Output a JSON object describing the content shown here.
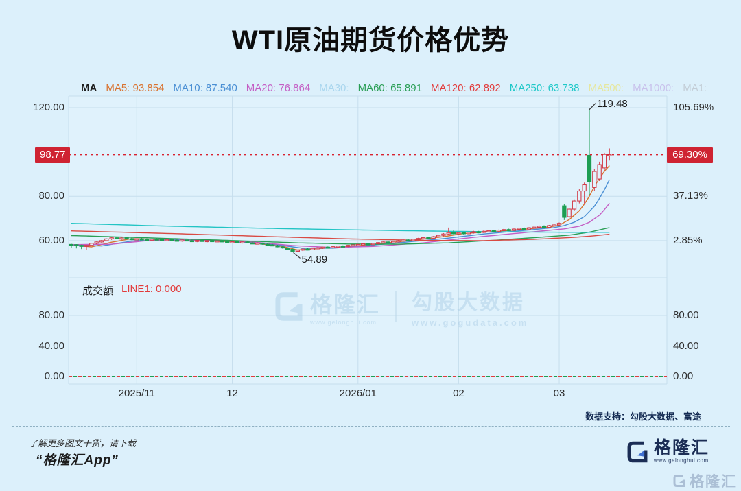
{
  "title": "WTI原油期货价格优势",
  "legend": {
    "prefix": "MA",
    "items": [
      {
        "label": "MA5: 93.854",
        "color": "#d9722f"
      },
      {
        "label": "MA10: 87.540",
        "color": "#4a8fd4"
      },
      {
        "label": "MA20: 76.864",
        "color": "#c45ec4"
      },
      {
        "label": "MA30:",
        "color": "#a9d6ee"
      },
      {
        "label": "MA60: 65.891",
        "color": "#2a9e55"
      },
      {
        "label": "MA120: 62.892",
        "color": "#e23b3b"
      },
      {
        "label": "MA250: 63.738",
        "color": "#1ec8c8"
      },
      {
        "label": "MA500:",
        "color": "#e6e79e"
      },
      {
        "label": "MA1000:",
        "color": "#c9c2ec"
      },
      {
        "label": "MA1:",
        "color": "#c3cdd6"
      }
    ]
  },
  "chart_data": {
    "type": "candlestick",
    "up_color": "#d23b49",
    "down_color": "#1d9e53",
    "main_axis_left": [
      {
        "v": 120,
        "label": "120.00"
      },
      {
        "v": 80,
        "label": "80.00"
      },
      {
        "v": 60,
        "label": "60.00"
      }
    ],
    "main_axis_right": [
      {
        "v": 120,
        "label": "105.69%"
      },
      {
        "v": 80,
        "label": "37.13%"
      },
      {
        "v": 60,
        "label": "2.85%"
      }
    ],
    "price_line": {
      "value": 98.77,
      "label": "98.77",
      "pct_label": "69.30%",
      "color": "#d8222f"
    },
    "x_ticks": [
      {
        "i": 13,
        "label": "2025/11"
      },
      {
        "i": 32,
        "label": "12"
      },
      {
        "i": 57,
        "label": "2026/01"
      },
      {
        "i": 77,
        "label": "02"
      },
      {
        "i": 97,
        "label": "03"
      }
    ],
    "annotations": [
      {
        "i": 103,
        "price": 119.48,
        "label": "119.48",
        "pos": "high"
      },
      {
        "i": 44,
        "price": 54.89,
        "label": "54.89",
        "pos": "low"
      }
    ],
    "candles": [
      [
        58.3,
        58.6,
        56.8,
        58.2
      ],
      [
        58.2,
        58.4,
        56.5,
        57.9
      ],
      [
        57.9,
        58.2,
        56.2,
        57.7
      ],
      [
        57.7,
        58.0,
        55.9,
        57.9
      ],
      [
        57.9,
        59.0,
        57.5,
        58.8
      ],
      [
        58.8,
        59.6,
        58.4,
        59.4
      ],
      [
        59.4,
        60.3,
        59.0,
        60.0
      ],
      [
        60.0,
        61.0,
        59.7,
        60.8
      ],
      [
        60.8,
        61.6,
        60.3,
        61.3
      ],
      [
        61.3,
        61.8,
        60.7,
        61.0
      ],
      [
        61.0,
        61.5,
        60.4,
        61.2
      ],
      [
        61.2,
        61.7,
        60.6,
        60.9
      ],
      [
        60.9,
        61.3,
        60.2,
        60.6
      ],
      [
        60.6,
        61.1,
        60.1,
        60.8
      ],
      [
        60.8,
        61.2,
        60.3,
        60.6
      ],
      [
        60.6,
        61.0,
        60.0,
        60.4
      ],
      [
        60.4,
        60.9,
        59.9,
        60.7
      ],
      [
        60.7,
        61.1,
        60.2,
        60.5
      ],
      [
        60.5,
        60.9,
        59.8,
        60.2
      ],
      [
        60.2,
        60.7,
        59.7,
        60.5
      ],
      [
        60.5,
        60.8,
        59.9,
        60.2
      ],
      [
        60.2,
        60.6,
        59.6,
        60.0
      ],
      [
        60.0,
        60.5,
        59.5,
        60.3
      ],
      [
        60.3,
        60.6,
        59.7,
        60.0
      ],
      [
        60.0,
        60.4,
        59.4,
        59.8
      ],
      [
        59.8,
        60.3,
        59.3,
        60.1
      ],
      [
        60.1,
        60.4,
        59.5,
        59.8
      ],
      [
        59.8,
        60.2,
        59.2,
        60.0
      ],
      [
        60.0,
        60.3,
        59.4,
        59.7
      ],
      [
        59.7,
        60.1,
        59.2,
        59.9
      ],
      [
        59.9,
        60.2,
        59.3,
        59.6
      ],
      [
        59.6,
        60.0,
        59.0,
        59.3
      ],
      [
        59.3,
        59.8,
        58.9,
        59.5
      ],
      [
        59.5,
        59.9,
        59.0,
        59.2
      ],
      [
        59.2,
        59.6,
        58.7,
        59.4
      ],
      [
        59.4,
        59.7,
        58.8,
        59.0
      ],
      [
        59.0,
        59.4,
        58.5,
        58.7
      ],
      [
        58.7,
        59.2,
        58.3,
        58.9
      ],
      [
        58.9,
        59.1,
        58.2,
        58.4
      ],
      [
        58.4,
        58.8,
        57.9,
        58.1
      ],
      [
        58.1,
        58.5,
        57.5,
        57.7
      ],
      [
        57.7,
        58.1,
        57.0,
        57.2
      ],
      [
        57.2,
        57.6,
        56.4,
        56.7
      ],
      [
        56.7,
        57.0,
        55.8,
        56.1
      ],
      [
        56.1,
        56.4,
        54.89,
        55.2
      ],
      [
        55.2,
        55.9,
        54.95,
        55.7
      ],
      [
        55.7,
        56.4,
        55.3,
        56.2
      ],
      [
        56.2,
        56.6,
        55.6,
        55.9
      ],
      [
        55.9,
        56.7,
        55.7,
        56.5
      ],
      [
        56.5,
        57.1,
        56.1,
        56.8
      ],
      [
        56.8,
        57.3,
        56.3,
        57.1
      ],
      [
        57.1,
        57.4,
        56.5,
        56.8
      ],
      [
        56.8,
        57.5,
        56.4,
        57.3
      ],
      [
        57.3,
        57.8,
        56.9,
        57.6
      ],
      [
        57.6,
        57.9,
        57.0,
        57.4
      ],
      [
        57.4,
        58.1,
        57.1,
        57.9
      ],
      [
        57.9,
        58.3,
        57.4,
        58.1
      ],
      [
        58.1,
        58.5,
        57.6,
        58.3
      ],
      [
        58.3,
        58.8,
        57.9,
        58.6
      ],
      [
        58.6,
        58.9,
        57.9,
        58.2
      ],
      [
        58.2,
        58.9,
        57.9,
        58.7
      ],
      [
        58.7,
        59.3,
        58.3,
        59.1
      ],
      [
        59.1,
        59.6,
        58.6,
        59.4
      ],
      [
        59.4,
        59.7,
        58.7,
        59.0
      ],
      [
        59.0,
        59.8,
        58.7,
        59.6
      ],
      [
        59.6,
        60.2,
        59.2,
        59.9
      ],
      [
        59.9,
        60.6,
        59.5,
        60.3
      ],
      [
        60.3,
        60.7,
        59.7,
        60.0
      ],
      [
        60.0,
        60.9,
        59.8,
        60.6
      ],
      [
        60.6,
        61.3,
        60.2,
        61.0
      ],
      [
        61.0,
        61.7,
        60.5,
        61.4
      ],
      [
        61.4,
        61.8,
        60.8,
        61.1
      ],
      [
        61.1,
        62.1,
        60.9,
        61.8
      ],
      [
        61.8,
        62.7,
        61.4,
        62.4
      ],
      [
        62.4,
        63.4,
        62.0,
        63.0
      ],
      [
        63.0,
        65.9,
        62.7,
        63.6
      ],
      [
        63.6,
        64.8,
        62.8,
        63.2
      ],
      [
        63.2,
        64.0,
        62.7,
        63.6
      ],
      [
        63.6,
        63.9,
        62.8,
        63.1
      ],
      [
        63.1,
        64.0,
        62.9,
        63.7
      ],
      [
        63.7,
        64.4,
        63.2,
        64.0
      ],
      [
        64.0,
        64.4,
        63.3,
        63.7
      ],
      [
        63.7,
        64.6,
        63.4,
        64.2
      ],
      [
        64.2,
        64.9,
        63.8,
        64.5
      ],
      [
        64.5,
        64.9,
        63.8,
        64.1
      ],
      [
        64.1,
        65.0,
        63.9,
        64.7
      ],
      [
        64.7,
        65.4,
        64.3,
        65.0
      ],
      [
        65.0,
        65.4,
        64.3,
        64.6
      ],
      [
        64.6,
        65.5,
        64.4,
        65.2
      ],
      [
        65.2,
        65.9,
        64.8,
        65.6
      ],
      [
        65.6,
        66.0,
        64.9,
        65.2
      ],
      [
        65.2,
        66.1,
        65.0,
        65.8
      ],
      [
        65.8,
        66.5,
        65.4,
        66.1
      ],
      [
        66.1,
        66.9,
        65.7,
        66.5
      ],
      [
        66.5,
        66.9,
        65.7,
        66.0
      ],
      [
        66.0,
        67.1,
        65.8,
        66.8
      ],
      [
        66.8,
        67.5,
        66.3,
        67.1
      ],
      [
        67.1,
        68.2,
        66.7,
        67.8
      ],
      [
        75.7,
        76.6,
        69.3,
        70.5
      ],
      [
        70.8,
        74.8,
        70.2,
        74.2
      ],
      [
        74.2,
        78.6,
        73.4,
        77.9
      ],
      [
        77.9,
        83.2,
        76.8,
        82.4
      ],
      [
        82.4,
        86.2,
        76.5,
        85.2
      ],
      [
        98.5,
        119.48,
        80.4,
        86.5
      ],
      [
        84.0,
        92.3,
        82.5,
        91.2
      ],
      [
        87.8,
        95.6,
        86.9,
        94.3
      ],
      [
        92.8,
        99.6,
        91.6,
        98.9
      ],
      [
        98.4,
        101.6,
        96.1,
        98.77
      ]
    ],
    "ma_lines": [
      {
        "name": "MA5",
        "color": "#d9722f",
        "points": [
          [
            0,
            58.0
          ],
          [
            4,
            57.2
          ],
          [
            8,
            59.3
          ],
          [
            12,
            60.9
          ],
          [
            20,
            60.4
          ],
          [
            28,
            59.9
          ],
          [
            36,
            59.0
          ],
          [
            42,
            57.4
          ],
          [
            45,
            55.8
          ],
          [
            48,
            56.2
          ],
          [
            54,
            57.2
          ],
          [
            60,
            58.3
          ],
          [
            68,
            60.2
          ],
          [
            74,
            61.8
          ],
          [
            78,
            63.2
          ],
          [
            84,
            64.1
          ],
          [
            90,
            65.1
          ],
          [
            95,
            66.2
          ],
          [
            97,
            66.9
          ],
          [
            99,
            69.5
          ],
          [
            101,
            73.5
          ],
          [
            102,
            76.5
          ],
          [
            103,
            80.0
          ],
          [
            104,
            84.5
          ],
          [
            105,
            88.0
          ],
          [
            106,
            91.3
          ],
          [
            107,
            93.85
          ]
        ]
      },
      {
        "name": "MA10",
        "color": "#4a8fd4",
        "points": [
          [
            0,
            58.1
          ],
          [
            6,
            57.6
          ],
          [
            12,
            59.8
          ],
          [
            20,
            60.5
          ],
          [
            30,
            59.9
          ],
          [
            40,
            58.4
          ],
          [
            46,
            56.6
          ],
          [
            52,
            56.6
          ],
          [
            58,
            57.6
          ],
          [
            66,
            59.2
          ],
          [
            74,
            60.9
          ],
          [
            82,
            63.0
          ],
          [
            90,
            64.6
          ],
          [
            96,
            65.9
          ],
          [
            98,
            66.8
          ],
          [
            100,
            68.3
          ],
          [
            102,
            70.8
          ],
          [
            104,
            75.5
          ],
          [
            105,
            79.0
          ],
          [
            106,
            83.0
          ],
          [
            107,
            87.54
          ]
        ]
      },
      {
        "name": "MA20",
        "color": "#c45ec4",
        "points": [
          [
            0,
            58.2
          ],
          [
            8,
            58.4
          ],
          [
            16,
            60.2
          ],
          [
            26,
            60.2
          ],
          [
            36,
            59.4
          ],
          [
            44,
            57.8
          ],
          [
            52,
            56.9
          ],
          [
            60,
            57.4
          ],
          [
            70,
            59.0
          ],
          [
            80,
            61.5
          ],
          [
            90,
            63.6
          ],
          [
            98,
            65.3
          ],
          [
            101,
            66.5
          ],
          [
            103,
            68.3
          ],
          [
            105,
            71.5
          ],
          [
            106,
            74.0
          ],
          [
            107,
            76.86
          ]
        ]
      },
      {
        "name": "MA60",
        "color": "#2a9e55",
        "points": [
          [
            0,
            62.3
          ],
          [
            15,
            61.3
          ],
          [
            30,
            60.2
          ],
          [
            45,
            59.0
          ],
          [
            55,
            58.5
          ],
          [
            65,
            58.4
          ],
          [
            75,
            59.0
          ],
          [
            85,
            60.3
          ],
          [
            93,
            61.5
          ],
          [
            99,
            62.5
          ],
          [
            103,
            63.8
          ],
          [
            107,
            65.89
          ]
        ]
      },
      {
        "name": "MA120",
        "color": "#d94a43",
        "points": [
          [
            0,
            64.4
          ],
          [
            20,
            63.2
          ],
          [
            40,
            61.8
          ],
          [
            55,
            60.8
          ],
          [
            70,
            60.1
          ],
          [
            82,
            60.0
          ],
          [
            92,
            60.6
          ],
          [
            100,
            61.5
          ],
          [
            104,
            62.2
          ],
          [
            107,
            62.89
          ]
        ]
      },
      {
        "name": "MA250",
        "color": "#22c4c4",
        "points": [
          [
            0,
            67.8
          ],
          [
            20,
            66.5
          ],
          [
            40,
            65.5
          ],
          [
            60,
            64.7
          ],
          [
            75,
            64.2
          ],
          [
            90,
            63.9
          ],
          [
            100,
            63.75
          ],
          [
            107,
            63.74
          ]
        ]
      }
    ],
    "volume": {
      "legend_title": "成交额",
      "line_label": "LINE1: 0.000",
      "line_label_color": "#e23b3b",
      "axis": [
        {
          "v": 80,
          "label": "80.00"
        },
        {
          "v": 40,
          "label": "40.00"
        },
        {
          "v": 0,
          "label": "0.00"
        }
      ],
      "zero_line_colors": [
        "#e23b3b",
        "#1d9e53"
      ]
    }
  },
  "watermark": {
    "brand": "格隆汇",
    "brand_url": "www.gelonghui.com",
    "partner": "勾股大数据",
    "partner_url": "www.gogudata.com"
  },
  "footer": {
    "support": "数据支持：勾股大数据、富途",
    "promo_line1": "了解更多图文干货，请下载",
    "promo_line2": "“格隆汇App”",
    "brand": "格隆汇",
    "brand_url": "www.gelonghui.com",
    "corner_brand": "格隆汇"
  },
  "colors": {
    "background": "#dcf0fb",
    "grid": "#c6deed",
    "badge_red": "#cf2332"
  }
}
